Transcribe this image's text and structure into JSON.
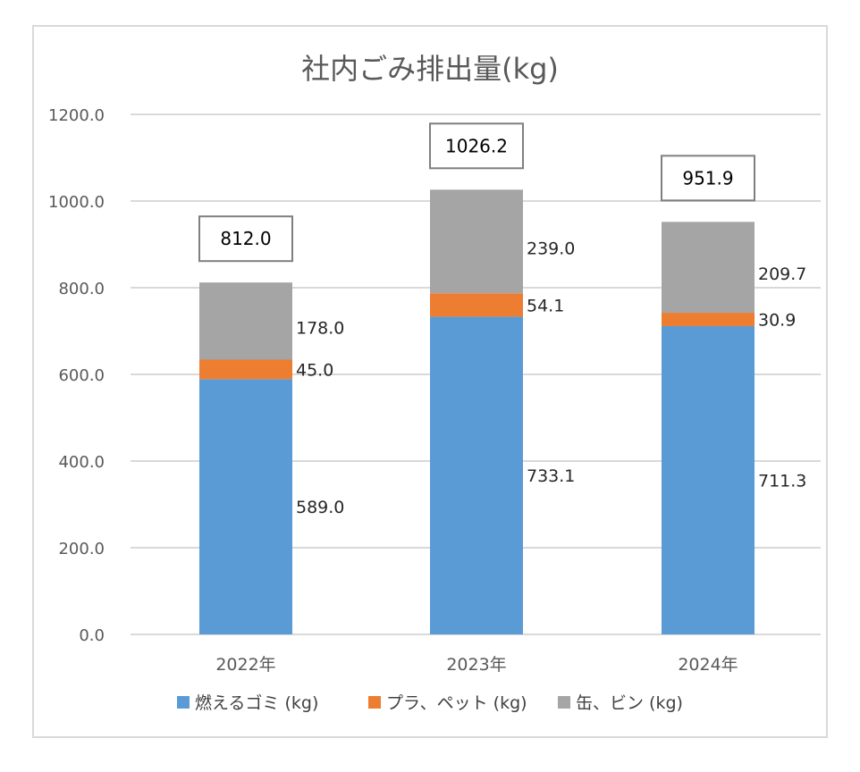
{
  "colors": {
    "burnable": "#5b9bd5",
    "plastic": "#ed7d31",
    "cans": "#a5a5a5",
    "grid": "#d9d9d9",
    "axis_text": "#595959"
  },
  "chart_data": {
    "type": "bar",
    "stacked": true,
    "title": "社内ごみ排出量(kg)",
    "categories": [
      "2022年",
      "2023年",
      "2024年"
    ],
    "series": [
      {
        "name": "燃えるゴミ (kg)",
        "values": [
          589.0,
          733.1,
          711.3
        ]
      },
      {
        "name": "プラ、ペット (kg)",
        "values": [
          45.0,
          54.1,
          30.9
        ]
      },
      {
        "name": "缶、ビン (kg)",
        "values": [
          178.0,
          239.0,
          209.7
        ]
      }
    ],
    "totals": [
      812.0,
      1026.2,
      951.9
    ],
    "ylim": [
      0,
      1200
    ],
    "yticks": [
      "0.0",
      "200.0",
      "400.0",
      "600.0",
      "800.0",
      "1000.0",
      "1200.0"
    ],
    "grid": true,
    "legend": "bottom"
  }
}
